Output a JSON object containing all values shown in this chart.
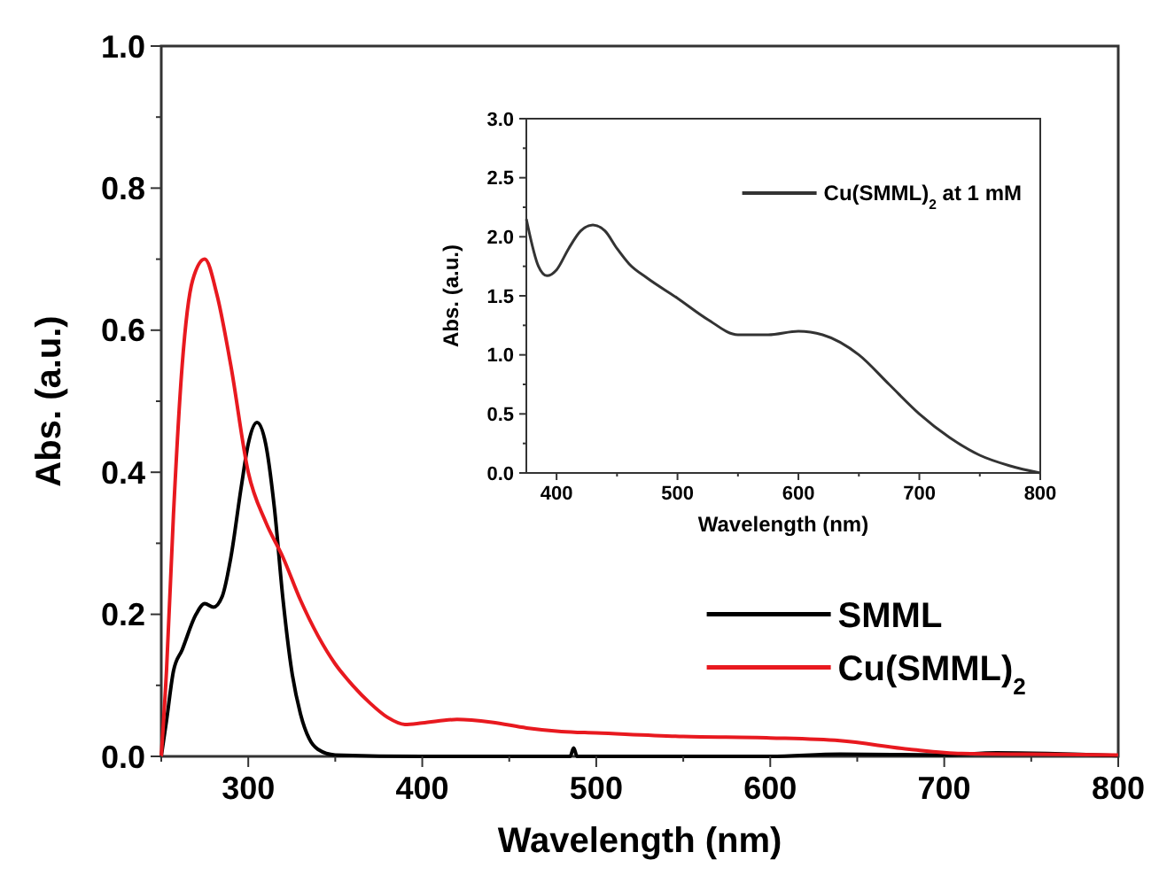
{
  "chart_data": [
    {
      "type": "line",
      "xlabel": "Wavelength (nm)",
      "ylabel": "Abs. (a.u.)",
      "xlim": [
        250,
        800
      ],
      "xticks": [
        300,
        400,
        500,
        600,
        700,
        800
      ],
      "ylim": [
        0,
        1
      ],
      "yticks": [
        {
          "value": 0,
          "label": "0.0"
        },
        0.2,
        0.4,
        0.6,
        0.8,
        {
          "value": 1,
          "label": "1.0"
        }
      ],
      "grid": false,
      "legend": "right",
      "line_style": "solid",
      "marker": "none",
      "series": [
        {
          "name": "SMML",
          "color": "#000000",
          "x": [
            250,
            253,
            257,
            262,
            270,
            275,
            280,
            285,
            290,
            296,
            300,
            305,
            310,
            315,
            320,
            325,
            330,
            335,
            340,
            350,
            400,
            485,
            487,
            489,
            600,
            640,
            700,
            730,
            800
          ],
          "values": [
            0,
            0.05,
            0.12,
            0.15,
            0.2,
            0.215,
            0.21,
            0.225,
            0.28,
            0.38,
            0.44,
            0.47,
            0.44,
            0.35,
            0.22,
            0.12,
            0.06,
            0.025,
            0.01,
            0.002,
            0,
            0,
            0.012,
            0,
            0,
            0.003,
            0.002,
            0.005,
            0.001
          ]
        },
        {
          "name": "Cu(SMML)$_{2}$",
          "color": "#e8191f",
          "x": [
            250,
            253,
            257,
            262,
            268,
            275,
            282,
            290,
            300,
            310,
            320,
            330,
            340,
            350,
            360,
            370,
            380,
            390,
            400,
            420,
            440,
            460,
            480,
            500,
            550,
            600,
            640,
            680,
            710,
            750,
            800
          ],
          "values": [
            0,
            0.12,
            0.34,
            0.55,
            0.67,
            0.7,
            0.65,
            0.55,
            0.4,
            0.33,
            0.28,
            0.22,
            0.17,
            0.13,
            0.1,
            0.075,
            0.055,
            0.045,
            0.047,
            0.052,
            0.048,
            0.04,
            0.035,
            0.033,
            0.028,
            0.026,
            0.022,
            0.01,
            0.004,
            0.003,
            0.002
          ]
        }
      ]
    },
    {
      "type": "line",
      "xlabel": "Wavelength (nm)",
      "ylabel": "Abs. (a.u.)",
      "xlim": [
        375,
        800
      ],
      "xticks": [
        400,
        500,
        600,
        700,
        800
      ],
      "ylim": [
        0,
        3
      ],
      "yticks": [
        {
          "value": 0,
          "label": "0.0"
        },
        0.5,
        {
          "value": 1,
          "label": "1.0"
        },
        1.5,
        {
          "value": 2,
          "label": "2.0"
        },
        2.5,
        {
          "value": 3,
          "label": "3.0"
        }
      ],
      "grid": false,
      "legend": "top right",
      "line_style": "solid",
      "marker": "none",
      "series": [
        {
          "name": "Cu(SMML)$_{2}$ at 1 mM",
          "color": "#333333",
          "x": [
            375,
            385,
            392,
            400,
            410,
            420,
            430,
            440,
            450,
            460,
            475,
            500,
            525,
            550,
            575,
            600,
            620,
            650,
            675,
            700,
            725,
            750,
            775,
            800
          ],
          "values": [
            2.15,
            1.75,
            1.67,
            1.72,
            1.9,
            2.05,
            2.1,
            2.05,
            1.9,
            1.77,
            1.65,
            1.48,
            1.3,
            1.17,
            1.17,
            1.2,
            1.17,
            1.0,
            0.75,
            0.5,
            0.3,
            0.15,
            0.06,
            0.0
          ]
        }
      ]
    }
  ]
}
